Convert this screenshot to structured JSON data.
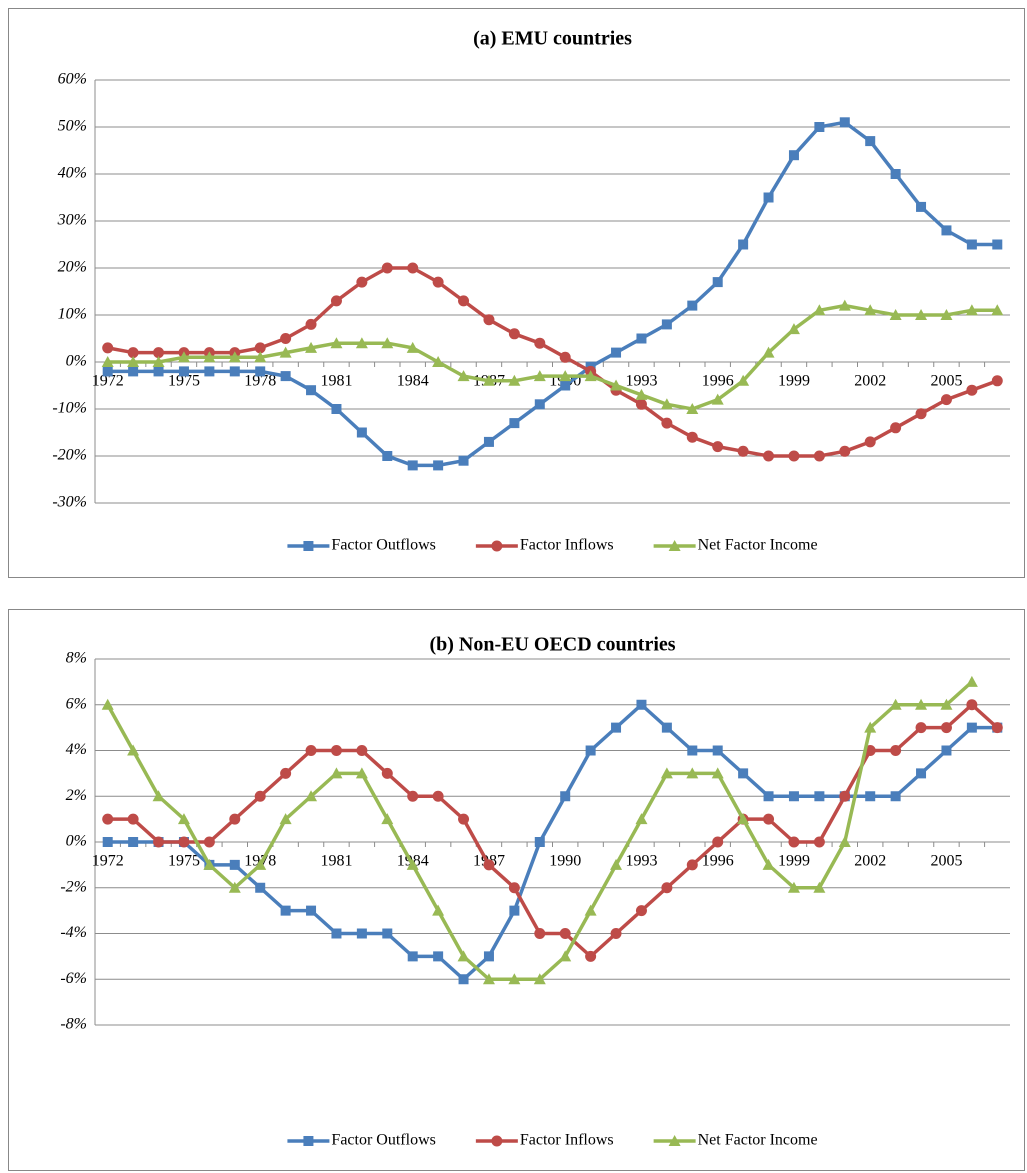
{
  "chart_data": [
    {
      "type": "line",
      "title": "(a) EMU countries",
      "categories": [
        "1972",
        null,
        null,
        "1975",
        null,
        null,
        "1978",
        null,
        null,
        "1981",
        null,
        null,
        "1984",
        null,
        null,
        "1987",
        null,
        null,
        "1990",
        null,
        null,
        "1993",
        null,
        null,
        "1996",
        null,
        null,
        "1999",
        null,
        null,
        "2002",
        null,
        null,
        "2005",
        null,
        null
      ],
      "series": [
        {
          "name": "Factor Outflows",
          "color": "#4a7ebb",
          "marker": "square",
          "values": [
            -2,
            -2,
            -2,
            -2,
            -2,
            -2,
            -2,
            -3,
            -6,
            -10,
            -15,
            -20,
            -22,
            -22,
            -21,
            -17,
            -13,
            -9,
            -5,
            -1,
            2,
            5,
            8,
            12,
            17,
            25,
            35,
            44,
            50,
            51,
            47,
            40,
            33,
            28,
            25,
            25
          ]
        },
        {
          "name": "Factor Inflows",
          "color": "#be4b48",
          "marker": "circle",
          "values": [
            3,
            2,
            2,
            2,
            2,
            2,
            3,
            5,
            8,
            13,
            17,
            20,
            20,
            17,
            13,
            9,
            6,
            4,
            1,
            -2,
            -6,
            -9,
            -13,
            -16,
            -18,
            -19,
            -20,
            -20,
            -20,
            -19,
            -17,
            -14,
            -11,
            -8,
            -6,
            -4
          ]
        },
        {
          "name": "Net Factor Income",
          "color": "#98b954",
          "marker": "triangle",
          "values": [
            0,
            0,
            0,
            1,
            1,
            1,
            1,
            2,
            3,
            4,
            4,
            4,
            3,
            0,
            -3,
            -4,
            -4,
            -3,
            -3,
            -3,
            -5,
            -7,
            -9,
            -10,
            -8,
            -4,
            2,
            7,
            11,
            12,
            11,
            10,
            10,
            10,
            11,
            11
          ]
        }
      ],
      "ylim": [
        -30,
        60
      ],
      "yticks": [
        {
          "value": -30,
          "label": "-30%"
        },
        {
          "value": -20,
          "label": "-20%"
        },
        {
          "value": -10,
          "label": "-10%"
        },
        {
          "value": 0,
          "label": "0%"
        },
        {
          "value": 10,
          "label": "10%"
        },
        {
          "value": 20,
          "label": "20%"
        },
        {
          "value": 30,
          "label": "30%"
        },
        {
          "value": 40,
          "label": "40%"
        },
        {
          "value": 50,
          "label": "50%"
        },
        {
          "value": 60,
          "label": "60%"
        }
      ],
      "grid": true,
      "legend": "bottom"
    },
    {
      "type": "line",
      "title": "(b) Non-EU OECD countries",
      "categories": [
        "1972",
        null,
        null,
        "1975",
        null,
        null,
        "1978",
        null,
        null,
        "1981",
        null,
        null,
        "1984",
        null,
        null,
        "1987",
        null,
        null,
        "1990",
        null,
        null,
        "1993",
        null,
        null,
        "1996",
        null,
        null,
        "1999",
        null,
        null,
        "2002",
        null,
        null,
        "2005",
        null,
        null
      ],
      "series": [
        {
          "name": "Factor Outflows",
          "color": "#4a7ebb",
          "marker": "square",
          "values": [
            0,
            0,
            0,
            0,
            -1,
            -1,
            -2,
            -3,
            -3,
            -4,
            -4,
            -4,
            -5,
            -5,
            -6,
            -5,
            -3,
            0,
            2,
            4,
            5,
            6,
            5,
            4,
            4,
            3,
            2,
            2,
            2,
            2,
            2,
            2,
            3,
            4,
            5,
            5
          ]
        },
        {
          "name": "Factor Inflows",
          "color": "#be4b48",
          "marker": "circle",
          "values": [
            1,
            1,
            0,
            0,
            0,
            1,
            2,
            3,
            4,
            4,
            4,
            3,
            2,
            2,
            1,
            -1,
            -2,
            -4,
            -4,
            -5,
            -4,
            -3,
            -2,
            -1,
            0,
            1,
            1,
            0,
            0,
            2,
            4,
            4,
            5,
            5,
            6,
            5
          ]
        },
        {
          "name": "Net Factor Income",
          "color": "#98b954",
          "marker": "triangle",
          "values": [
            6,
            4,
            2,
            1,
            -1,
            -2,
            -1,
            1,
            2,
            3,
            3,
            1,
            -1,
            -3,
            -5,
            -6,
            -6,
            -6,
            -5,
            -3,
            -1,
            1,
            3,
            3,
            3,
            1,
            -1,
            -2,
            -2,
            0,
            5,
            6,
            6,
            6,
            7,
            null
          ]
        }
      ],
      "ylim": [
        -8,
        8
      ],
      "yticks": [
        {
          "value": -8,
          "label": "-8%"
        },
        {
          "value": -6,
          "label": "-6%"
        },
        {
          "value": -4,
          "label": "-4%"
        },
        {
          "value": -2,
          "label": "-2%"
        },
        {
          "value": 0,
          "label": "0%"
        },
        {
          "value": 2,
          "label": "2%"
        },
        {
          "value": 4,
          "label": "4%"
        },
        {
          "value": 6,
          "label": "6%"
        },
        {
          "value": 8,
          "label": "8%"
        }
      ],
      "grid": true,
      "legend": "bottom"
    }
  ]
}
